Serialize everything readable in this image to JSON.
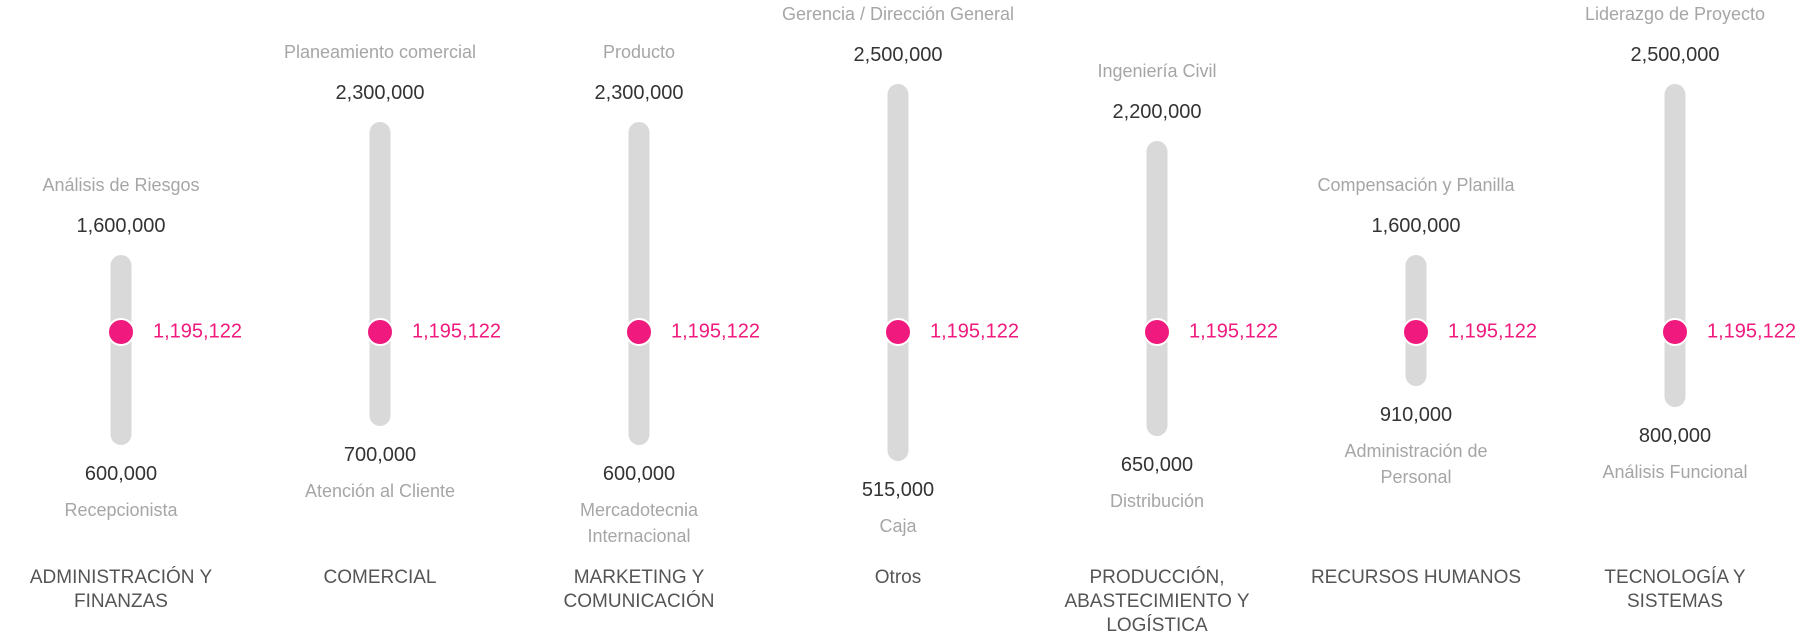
{
  "chart_data": {
    "type": "range",
    "columns": [
      {
        "category": "ADMINISTRACIÓN Y FINANZAS",
        "max_role": "Análisis de Riesgos",
        "max": 1600000,
        "max_label": "1,600,000",
        "min_role": "Recepcionista",
        "min": 600000,
        "min_label": "600,000",
        "value": 1195122,
        "value_label": "1,195,122"
      },
      {
        "category": "COMERCIAL",
        "max_role": "Planeamiento comercial",
        "max": 2300000,
        "max_label": "2,300,000",
        "min_role": "Atención al Cliente",
        "min": 700000,
        "min_label": "700,000",
        "value": 1195122,
        "value_label": "1,195,122"
      },
      {
        "category": "MARKETING Y COMUNICACIÓN",
        "max_role": "Producto",
        "max": 2300000,
        "max_label": "2,300,000",
        "min_role": "Mercadotecnia Internacional",
        "min": 600000,
        "min_label": "600,000",
        "value": 1195122,
        "value_label": "1,195,122"
      },
      {
        "category": "Otros",
        "max_role": "Gerencia / Dirección General",
        "max": 2500000,
        "max_label": "2,500,000",
        "min_role": "Caja",
        "min": 515000,
        "min_label": "515,000",
        "value": 1195122,
        "value_label": "1,195,122"
      },
      {
        "category": "PRODUCCIÓN, ABASTECIMIENTO Y LOGÍSTICA",
        "max_role": "Ingeniería Civil",
        "max": 2200000,
        "max_label": "2,200,000",
        "min_role": "Distribución",
        "min": 650000,
        "min_label": "650,000",
        "value": 1195122,
        "value_label": "1,195,122"
      },
      {
        "category": "RECURSOS HUMANOS",
        "max_role": "Compensación y Planilla",
        "max": 1600000,
        "max_label": "1,600,000",
        "min_role": "Administración de Personal",
        "min": 910000,
        "min_label": "910,000",
        "value": 1195122,
        "value_label": "1,195,122"
      },
      {
        "category": "TECNOLOGÍA Y SISTEMAS",
        "max_role": "Liderazgo de Proyecto",
        "max": 2500000,
        "max_label": "2,500,000",
        "min_role": "Análisis Funcional",
        "min": 800000,
        "min_label": "800,000",
        "value": 1195122,
        "value_label": "1,195,122"
      }
    ],
    "bar_color": "#d9d9d9",
    "dot_color": "#f0197d"
  }
}
